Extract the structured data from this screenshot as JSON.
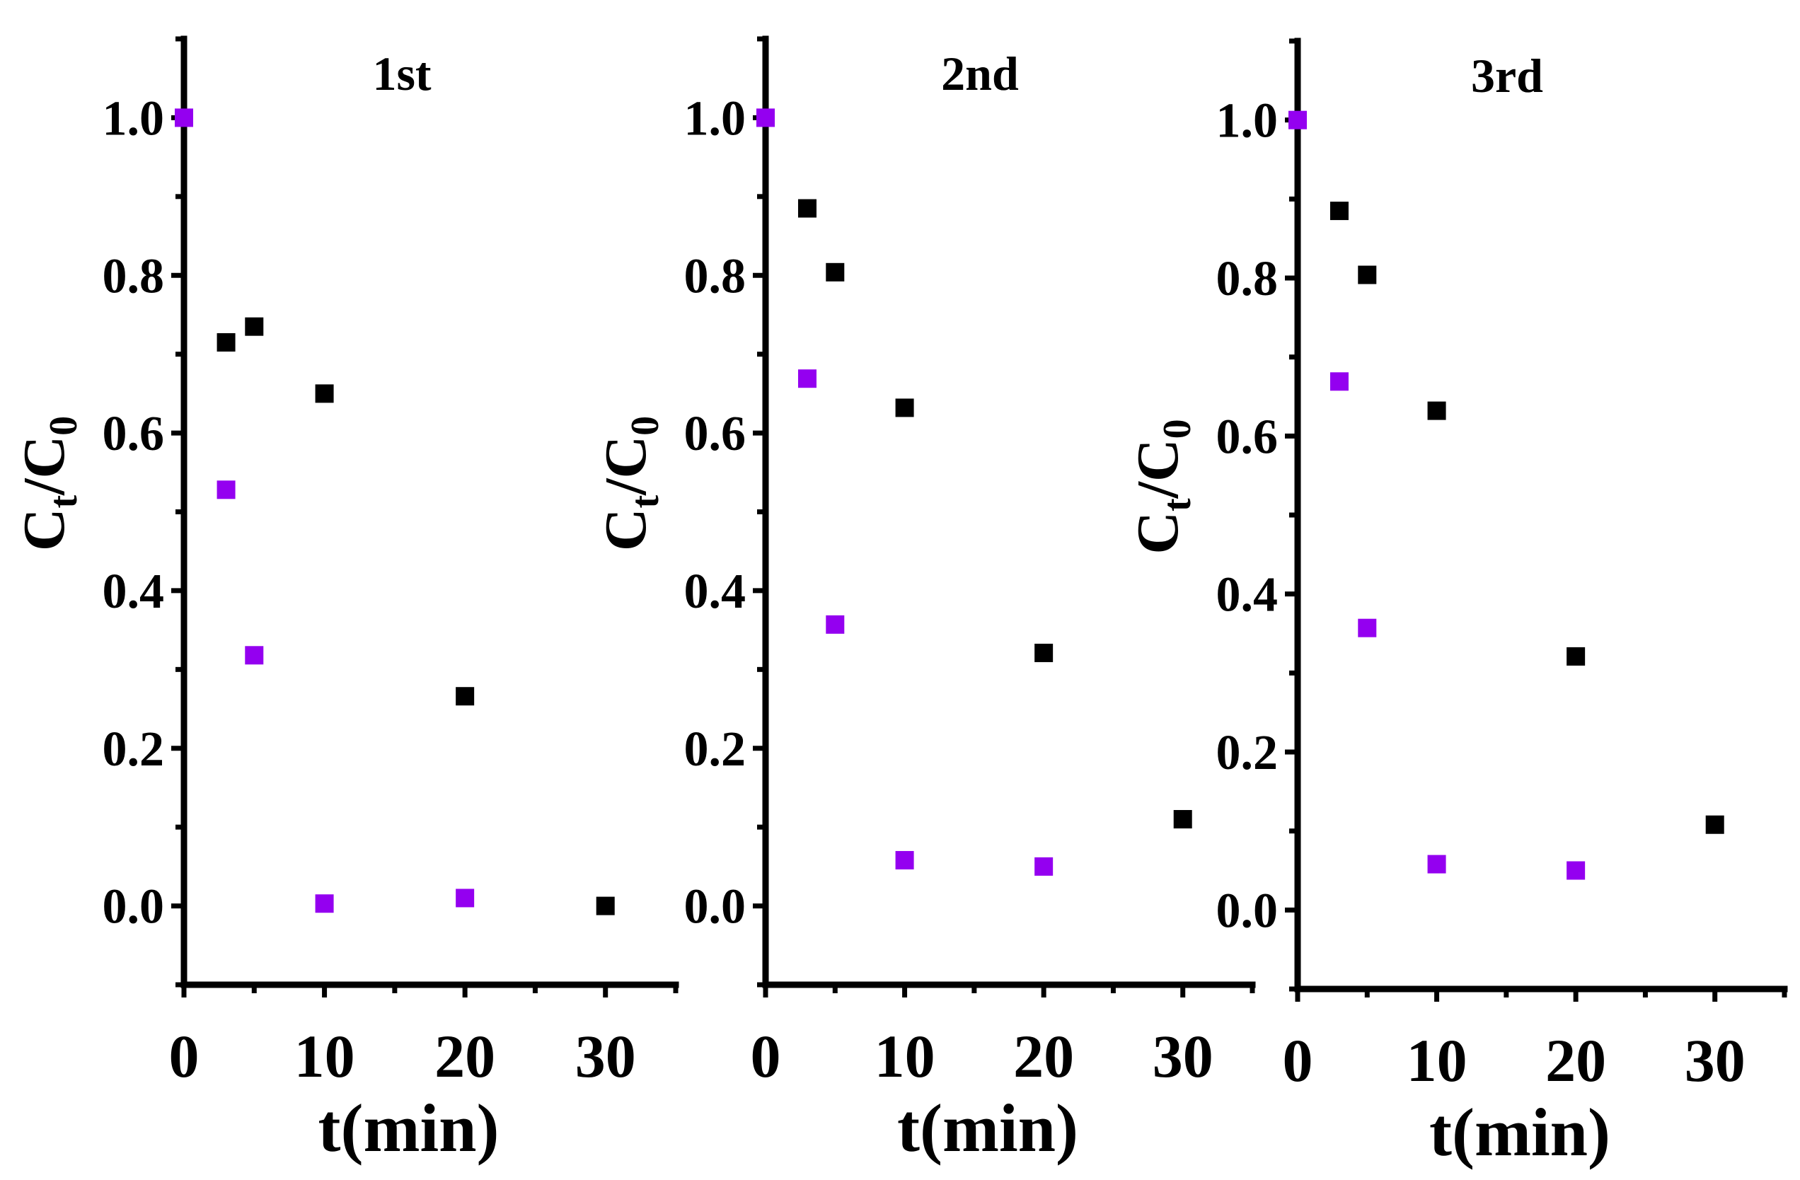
{
  "colors": {
    "series1": "#000000",
    "series2": "#9400f0",
    "axis": "#000000",
    "background": "#ffffff"
  },
  "chart_data": [
    {
      "type": "scatter",
      "title": "1st",
      "xlabel": "t(min)",
      "ylabel": {
        "main": "C",
        "sub1": "t",
        "mid": "/C",
        "sub2": "0"
      },
      "xlim": [
        0,
        35
      ],
      "ylim": [
        -0.1,
        1.1
      ],
      "xticks": [
        "0",
        "10",
        "20",
        "30"
      ],
      "yticks": [
        "0.0",
        "0.2",
        "0.4",
        "0.6",
        "0.8",
        "1.0"
      ],
      "series": [
        {
          "name": "black",
          "x": [
            3,
            5,
            10,
            20,
            30
          ],
          "y": [
            0.715,
            0.735,
            0.65,
            0.266,
            0.0
          ]
        },
        {
          "name": "purple",
          "x": [
            0,
            3,
            5,
            10,
            20
          ],
          "y": [
            1.0,
            0.528,
            0.318,
            0.003,
            0.01
          ]
        }
      ]
    },
    {
      "type": "scatter",
      "title": "2nd",
      "xlabel": "t(min)",
      "ylabel": {
        "main": "C",
        "sub1": "t",
        "mid": "/C",
        "sub2": "0"
      },
      "xlim": [
        0,
        35
      ],
      "ylim": [
        -0.1,
        1.1
      ],
      "xticks": [
        "0",
        "10",
        "20",
        "30"
      ],
      "yticks": [
        "0.0",
        "0.2",
        "0.4",
        "0.6",
        "0.8",
        "1.0"
      ],
      "series": [
        {
          "name": "black",
          "x": [
            3,
            5,
            10,
            20,
            30
          ],
          "y": [
            0.885,
            0.804,
            0.632,
            0.321,
            0.11
          ]
        },
        {
          "name": "purple",
          "x": [
            0,
            3,
            5,
            10,
            20
          ],
          "y": [
            1.0,
            0.669,
            0.357,
            0.058,
            0.05
          ]
        }
      ]
    },
    {
      "type": "scatter",
      "title": "3rd",
      "xlabel": "t(min)",
      "ylabel": {
        "main": "C",
        "sub1": "t",
        "mid": "/C",
        "sub2": "0"
      },
      "xlim": [
        0,
        35
      ],
      "ylim": [
        -0.1,
        1.1
      ],
      "xticks": [
        "0",
        "10",
        "20",
        "30"
      ],
      "yticks": [
        "0.0",
        "0.2",
        "0.4",
        "0.6",
        "0.8",
        "1.0"
      ],
      "series": [
        {
          "name": "black",
          "x": [
            3,
            5,
            10,
            20,
            30
          ],
          "y": [
            0.885,
            0.804,
            0.632,
            0.321,
            0.108
          ]
        },
        {
          "name": "purple",
          "x": [
            0,
            3,
            5,
            10,
            20
          ],
          "y": [
            1.0,
            0.669,
            0.357,
            0.058,
            0.05
          ]
        }
      ]
    }
  ]
}
